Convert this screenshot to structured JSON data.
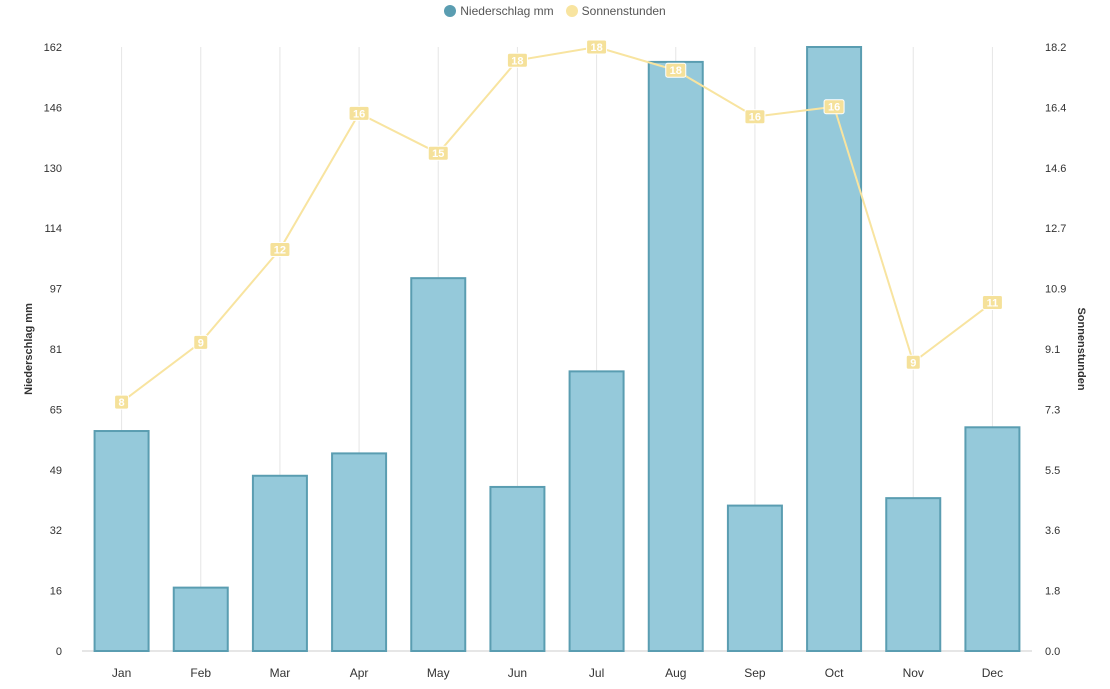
{
  "legend": {
    "series1": "Niederschlag mm",
    "series2": "Sonnenstunden"
  },
  "colors": {
    "bar_fill": "#95c9da",
    "bar_stroke": "#5a9db1",
    "line": "#f8e4a0",
    "label_bg": "#f5e19a",
    "grid": "#e6e6e6",
    "text": "#333333"
  },
  "chart_data": {
    "type": "bar",
    "categories": [
      "Jan",
      "Feb",
      "Mar",
      "Apr",
      "May",
      "Jun",
      "Jul",
      "Aug",
      "Sep",
      "Oct",
      "Nov",
      "Dec"
    ],
    "series": [
      {
        "name": "Niederschlag mm",
        "type": "bar",
        "axis": "left",
        "values": [
          59,
          17,
          47,
          53,
          100,
          44,
          75,
          158,
          39,
          162,
          41,
          60
        ]
      },
      {
        "name": "Sonnenstunden",
        "type": "line",
        "axis": "right",
        "values": [
          7.5,
          9.3,
          12.1,
          16.2,
          15.0,
          17.8,
          18.2,
          17.5,
          16.1,
          16.4,
          8.7,
          10.5
        ],
        "labels": [
          "8",
          "9",
          "12",
          "16",
          "15",
          "18",
          "18",
          "18",
          "16",
          "16",
          "9",
          "11"
        ]
      }
    ],
    "ylabel": "Niederschlag mm",
    "y2label": "Sonnenstunden",
    "ylim": [
      0,
      162
    ],
    "y2lim": [
      0,
      18.2
    ],
    "yticks": [
      "0",
      "16",
      "32",
      "49",
      "65",
      "81",
      "97",
      "114",
      "130",
      "146",
      "162"
    ],
    "y2ticks": [
      "0.0",
      "1.8",
      "3.6",
      "5.5",
      "7.3",
      "9.1",
      "10.9",
      "12.7",
      "14.6",
      "16.4",
      "18.2"
    ],
    "grid": "vertical",
    "legend_position": "top-center"
  }
}
